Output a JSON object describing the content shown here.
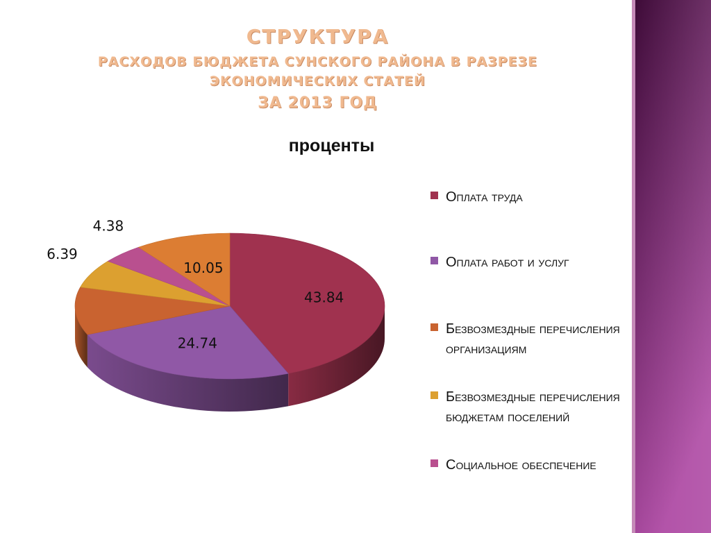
{
  "slide": {
    "title_lines": [
      "СТРУКТУРА",
      "РАСХОДОВ БЮДЖЕТА СУНСКОГО РАЙОНА В РАЗРЕЗЕ",
      "ЭКОНОМИЧЕСКИХ СТАТЕЙ",
      "ЗА 2013 ГОД"
    ],
    "title_color": "#f0b98f",
    "decor_gradient": [
      "#3e0b38",
      "#b04ea6"
    ]
  },
  "chart_data": {
    "type": "pie",
    "title": "проценты",
    "categories": [
      "Оплата труда",
      "Оплата работ и услуг",
      "Безвозмездные перечисления организациям",
      "Безвозмездные перечисления бюджетам поселений",
      "Социальное обеспечение"
    ],
    "values": [
      43.84,
      24.74,
      null,
      6.39,
      4.38
    ],
    "data_labels": [
      "43.84",
      "24.74",
      "",
      "6.39",
      "4.38"
    ],
    "extra_slice": {
      "value": 10.05,
      "label": "10.05",
      "color": "#dc7d33"
    },
    "unlabeled_slice_value": 10.6,
    "colors": [
      "#a0324f",
      "#9058a6",
      "#c96330",
      "#dca030",
      "#b9508f"
    ],
    "legend_position": "right",
    "style": "3d"
  }
}
